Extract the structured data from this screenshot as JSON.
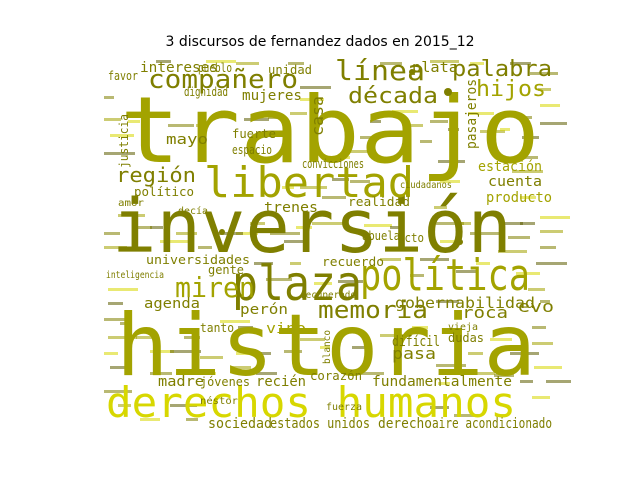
{
  "title": "3 discursos de fernandez dados en 2015_12",
  "colors": {
    "olive": "#7f7f00",
    "olive_light": "#a3a300",
    "olive_dark": "#5d5d00",
    "yellow": "#d7d700"
  },
  "words": [
    {
      "text": "trabajo"
    },
    {
      "text": "inversión"
    },
    {
      "text": "historia"
    },
    {
      "text": "derechos humanos"
    },
    {
      "text": "plaza"
    },
    {
      "text": "política"
    },
    {
      "text": "libertad"
    },
    {
      "text": "compañero"
    },
    {
      "text": "línea"
    },
    {
      "text": "palabra"
    },
    {
      "text": "década"
    },
    {
      "text": "hijos"
    },
    {
      "text": "miren"
    },
    {
      "text": "memoria"
    },
    {
      "text": "región"
    },
    {
      "text": "gobernabilidad"
    },
    {
      "text": "fundamentalmente"
    },
    {
      "text": "intereses"
    },
    {
      "text": "unidad"
    },
    {
      "text": "mujeres"
    },
    {
      "text": "casa"
    },
    {
      "text": "mayo"
    },
    {
      "text": "fuerte"
    },
    {
      "text": "político"
    },
    {
      "text": "trenes"
    },
    {
      "text": "realidad"
    },
    {
      "text": "cuenta"
    },
    {
      "text": "estación"
    },
    {
      "text": "pasajeros"
    },
    {
      "text": "producto"
    },
    {
      "text": "universidades"
    },
    {
      "text": "agenda"
    },
    {
      "text": "perón"
    },
    {
      "text": "vino"
    },
    {
      "text": "roca"
    },
    {
      "text": "evo"
    },
    {
      "text": "recuerdo"
    },
    {
      "text": "madre"
    },
    {
      "text": "jóvenes"
    },
    {
      "text": "recién"
    },
    {
      "text": "corazón"
    },
    {
      "text": "sociedad"
    },
    {
      "text": "estados unidos"
    },
    {
      "text": "derecho"
    },
    {
      "text": "aire acondicionado"
    },
    {
      "text": "pasa"
    },
    {
      "text": "gente"
    },
    {
      "text": "plata"
    },
    {
      "text": "favor"
    },
    {
      "text": "pueblo"
    },
    {
      "text": "dignidad"
    },
    {
      "text": "justicia"
    },
    {
      "text": "espacio"
    },
    {
      "text": "convicciones"
    },
    {
      "text": "ciudadanos"
    },
    {
      "text": "inteligencia"
    },
    {
      "text": "recuperado"
    },
    {
      "text": "difícil"
    },
    {
      "text": "blanco"
    },
    {
      "text": "abuela"
    },
    {
      "text": "acto"
    },
    {
      "text": "tanto"
    },
    {
      "text": "néstor"
    },
    {
      "text": "vieja"
    },
    {
      "text": "dudas"
    },
    {
      "text": "fuerza"
    },
    {
      "text": "amor"
    },
    {
      "text": "decía"
    }
  ]
}
